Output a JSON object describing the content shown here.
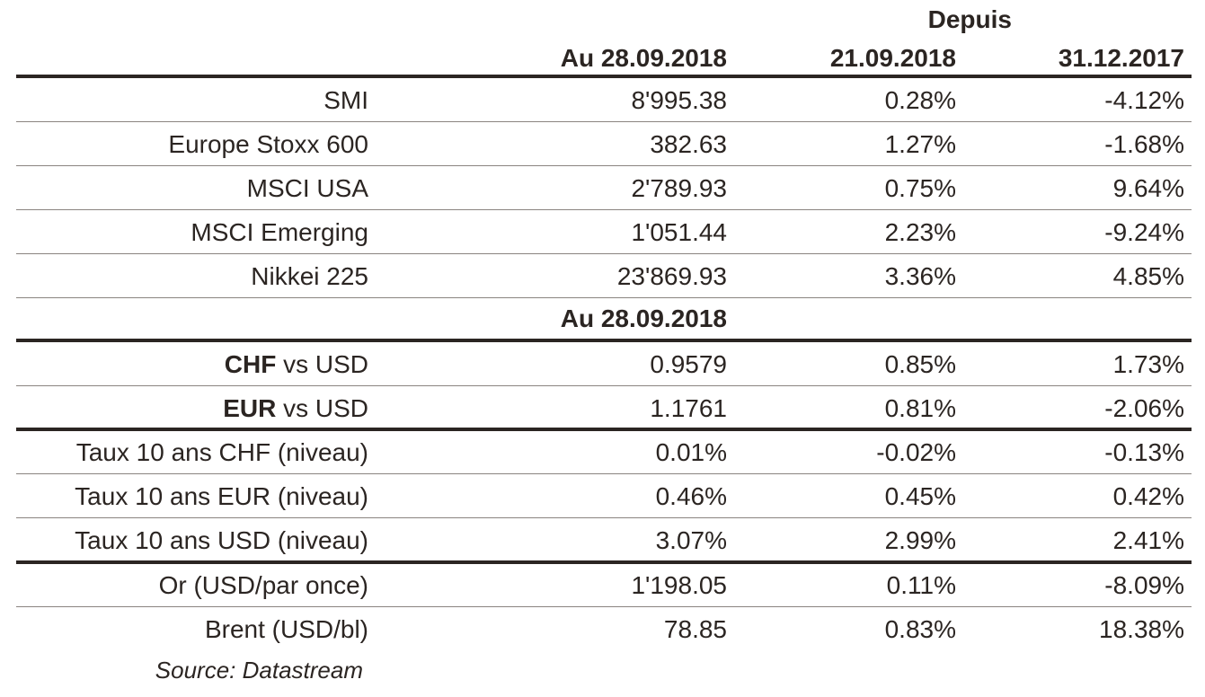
{
  "header": {
    "group_label": "Depuis",
    "col_value": "Au 28.09.2018",
    "col_week": "21.09.2018",
    "col_ytd": "31.12.2017"
  },
  "indices": [
    {
      "label": "SMI",
      "value": "8'995.38",
      "week": "0.28%",
      "ytd": "-4.12%"
    },
    {
      "label": "Europe Stoxx 600",
      "value": "382.63",
      "week": "1.27%",
      "ytd": "-1.68%"
    },
    {
      "label": "MSCI USA",
      "value": "2'789.93",
      "week": "0.75%",
      "ytd": "9.64%"
    },
    {
      "label": "MSCI Emerging",
      "value": "1'051.44",
      "week": "2.23%",
      "ytd": "-9.24%"
    },
    {
      "label": "Nikkei 225",
      "value": "23'869.93",
      "week": "3.36%",
      "ytd": "4.85%"
    }
  ],
  "subheader": "Au 28.09.2018",
  "fx": [
    {
      "label_bold": "CHF",
      "label_rest": " vs USD",
      "value": "0.9579",
      "week": "0.85%",
      "ytd": "1.73%"
    },
    {
      "label_bold": "EUR",
      "label_rest": " vs USD",
      "value": "1.1761",
      "week": "0.81%",
      "ytd": "-2.06%"
    }
  ],
  "rates": [
    {
      "label": "Taux 10 ans CHF (niveau)",
      "value": "0.01%",
      "week": "-0.02%",
      "ytd": "-0.13%"
    },
    {
      "label": "Taux 10 ans EUR (niveau)",
      "value": "0.46%",
      "week": "0.45%",
      "ytd": "0.42%"
    },
    {
      "label": "Taux 10 ans USD (niveau)",
      "value": "3.07%",
      "week": "2.99%",
      "ytd": "2.41%"
    }
  ],
  "commodities": [
    {
      "label": "Or (USD/par once)",
      "value": "1'198.05",
      "week": "0.11%",
      "ytd": "-8.09%"
    },
    {
      "label": "Brent (USD/bl)",
      "value": "78.85",
      "week": "0.83%",
      "ytd": "18.38%"
    }
  ],
  "source": "Source: Datastream"
}
